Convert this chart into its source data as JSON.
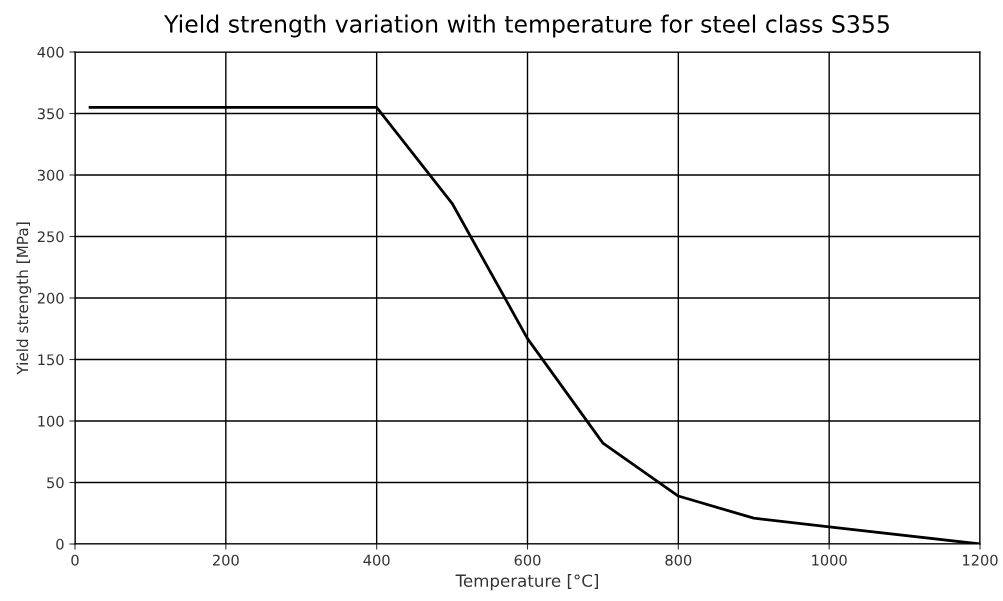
{
  "chart_data": {
    "type": "line",
    "title": "Yield strength variation with temperature for steel class S355",
    "xlabel": "Temperature [°C]",
    "ylabel": "Yield strength [MPa]",
    "x": [
      20,
      400,
      500,
      600,
      700,
      800,
      900,
      1000,
      1200
    ],
    "series": [
      {
        "color": "#000000",
        "values": [
          355,
          355,
          277,
          167,
          82,
          39,
          21,
          14,
          0
        ]
      }
    ],
    "xlim": [
      0,
      1200
    ],
    "xticks": [
      0,
      200,
      400,
      600,
      800,
      1000,
      1200
    ],
    "ylim": [
      0,
      400
    ],
    "yticks": [
      0,
      50,
      100,
      150,
      200,
      250,
      300,
      350,
      400
    ],
    "grid": true,
    "marker": "none",
    "line_style": "solid",
    "legend": false
  }
}
